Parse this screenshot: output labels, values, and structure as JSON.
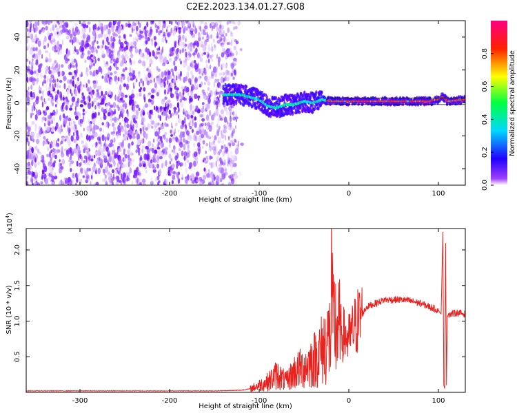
{
  "title": "C2E2.2023.134.01.27.G08",
  "chart_data": [
    {
      "type": "heatmap",
      "xlabel": "Height of straight line (km)",
      "ylabel": "Frequency (Hz)",
      "xlim": [
        -360,
        130
      ],
      "ylim": [
        -50,
        50
      ],
      "x_ticks": [
        "-300",
        "-200",
        "-100",
        "0",
        "100"
      ],
      "y_ticks": [
        "-40",
        "-20",
        "0",
        "20",
        "40"
      ],
      "colorbar": {
        "label": "Normalized spectral amplitude",
        "range": [
          0,
          1
        ],
        "ticks": [
          "0.0",
          "0.2",
          "0.4",
          "0.6",
          "0.8"
        ],
        "colormap": [
          "#ffffff",
          "#7a00ff",
          "#0000ff",
          "#00e5ff",
          "#00ff00",
          "#ffff00",
          "#ff0000",
          "#ff0080"
        ]
      },
      "noise_region": {
        "x": [
          -360,
          -125
        ],
        "y": [
          -50,
          50
        ]
      },
      "signal_trace": {
        "x": [
          -140,
          -120,
          -100,
          -90,
          -80,
          -70,
          -60,
          -50,
          -40,
          -30,
          -20,
          0,
          50,
          90,
          100,
          105,
          110,
          130
        ],
        "y": [
          5,
          5,
          2,
          -2,
          -3,
          -1,
          -1,
          1,
          0,
          2,
          1,
          1,
          1,
          1,
          2,
          4,
          1,
          2
        ]
      }
    },
    {
      "type": "line",
      "xlabel": "Height of straight line (km)",
      "ylabel": "SNR (10 * v/v)",
      "yscale_label": "(x10",
      "yscale_exp": "4",
      "xlim": [
        -360,
        130
      ],
      "ylim": [
        0,
        2.3
      ],
      "x_ticks": [
        "-300",
        "-200",
        "-100",
        "0",
        "100"
      ],
      "y_ticks": [
        "0.5",
        "1.0",
        "1.5",
        "2.0"
      ],
      "line_color": "#e8231f",
      "series": [
        {
          "x": [
            -360,
            -300,
            -200,
            -150,
            -120,
            -110,
            -100,
            -90,
            -80,
            -70,
            -60,
            -50,
            -40,
            -35,
            -30,
            -25,
            -20,
            -19,
            -18,
            -15,
            -10,
            -5,
            0,
            10,
            20,
            30,
            40,
            50,
            60,
            70,
            80,
            90,
            95,
            100,
            103,
            105,
            106,
            107,
            108,
            109,
            110,
            112,
            115,
            120,
            130
          ],
          "y": [
            0.02,
            0.02,
            0.02,
            0.02,
            0.03,
            0.05,
            0.1,
            0.15,
            0.25,
            0.15,
            0.3,
            0.35,
            0.45,
            0.5,
            0.6,
            0.7,
            0.8,
            2.05,
            0.9,
            0.95,
            0.85,
            0.8,
            0.75,
            1.0,
            1.2,
            1.25,
            1.3,
            1.3,
            1.3,
            1.28,
            1.25,
            1.2,
            1.18,
            1.15,
            1.1,
            2.25,
            0.1,
            0.05,
            2.1,
            0.1,
            1.1,
            1.1,
            1.1,
            1.12,
            1.1
          ]
        }
      ]
    }
  ]
}
